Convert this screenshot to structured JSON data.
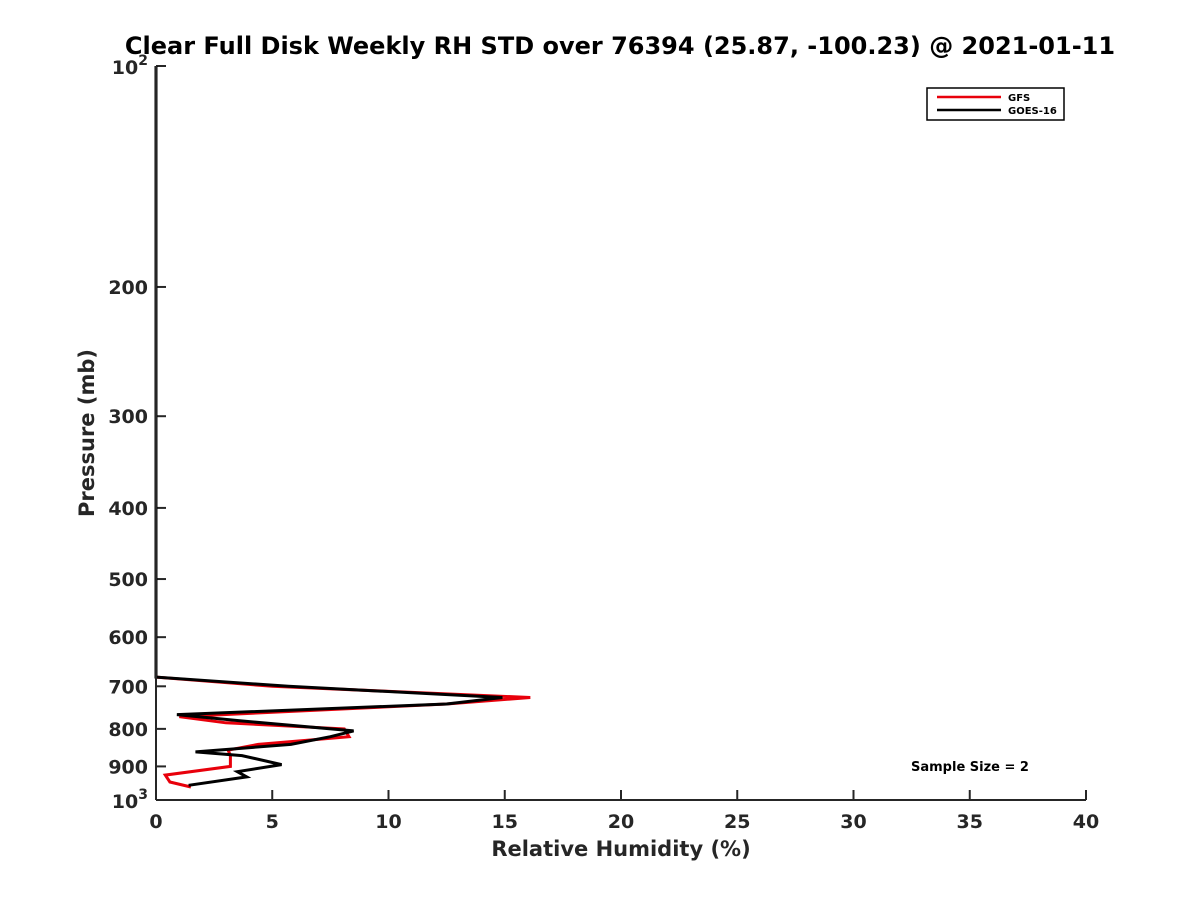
{
  "chart_data": {
    "type": "line",
    "title": "Clear Full Disk Weekly RH STD over 76394 (25.87, -100.23) @ 2021-01-11",
    "xlabel": "Relative Humidity (%)",
    "ylabel": "Pressure (mb)",
    "xlim": [
      0,
      40
    ],
    "ylim": [
      100,
      1000
    ],
    "y_scale": "log",
    "y_reversed": true,
    "grid": false,
    "legend_position": "top-right",
    "x_ticks": [
      "0",
      "5",
      "10",
      "15",
      "20",
      "25",
      "30",
      "35",
      "40"
    ],
    "y_ticks": [
      {
        "value": 100,
        "base": "10",
        "exp": "2"
      },
      {
        "value": 200,
        "label": "200"
      },
      {
        "value": 300,
        "label": "300"
      },
      {
        "value": 400,
        "label": "400"
      },
      {
        "value": 500,
        "label": "500"
      },
      {
        "value": 600,
        "label": "600"
      },
      {
        "value": 700,
        "label": "700"
      },
      {
        "value": 800,
        "label": "800"
      },
      {
        "value": 900,
        "label": "900"
      },
      {
        "value": 1000,
        "base": "10",
        "exp": "3"
      }
    ],
    "series": [
      {
        "name": "GFS",
        "color": "#e8000b",
        "points": [
          [
            0,
            100
          ],
          [
            0,
            680
          ],
          [
            5,
            700
          ],
          [
            16.1,
            725
          ],
          [
            12.5,
            740
          ],
          [
            1,
            770
          ],
          [
            3,
            785
          ],
          [
            8.1,
            800
          ],
          [
            8.3,
            820
          ],
          [
            4.4,
            840
          ],
          [
            3.1,
            855
          ],
          [
            3.2,
            870
          ],
          [
            3.2,
            900
          ],
          [
            0.4,
            925
          ],
          [
            0.6,
            945
          ],
          [
            1.5,
            960
          ]
        ]
      },
      {
        "name": "GOES-16",
        "color": "#000000",
        "points": [
          [
            0,
            100
          ],
          [
            0,
            680
          ],
          [
            5.7,
            700
          ],
          [
            14.9,
            725
          ],
          [
            12.5,
            740
          ],
          [
            0.9,
            765
          ],
          [
            3.6,
            780
          ],
          [
            8.5,
            805
          ],
          [
            7.5,
            820
          ],
          [
            5.8,
            840
          ],
          [
            1.7,
            860
          ],
          [
            3.7,
            870
          ],
          [
            5.4,
            895
          ],
          [
            3.5,
            915
          ],
          [
            3.9,
            930
          ],
          [
            1.4,
            955
          ]
        ]
      }
    ],
    "annotation": "Sample Size = 2"
  }
}
